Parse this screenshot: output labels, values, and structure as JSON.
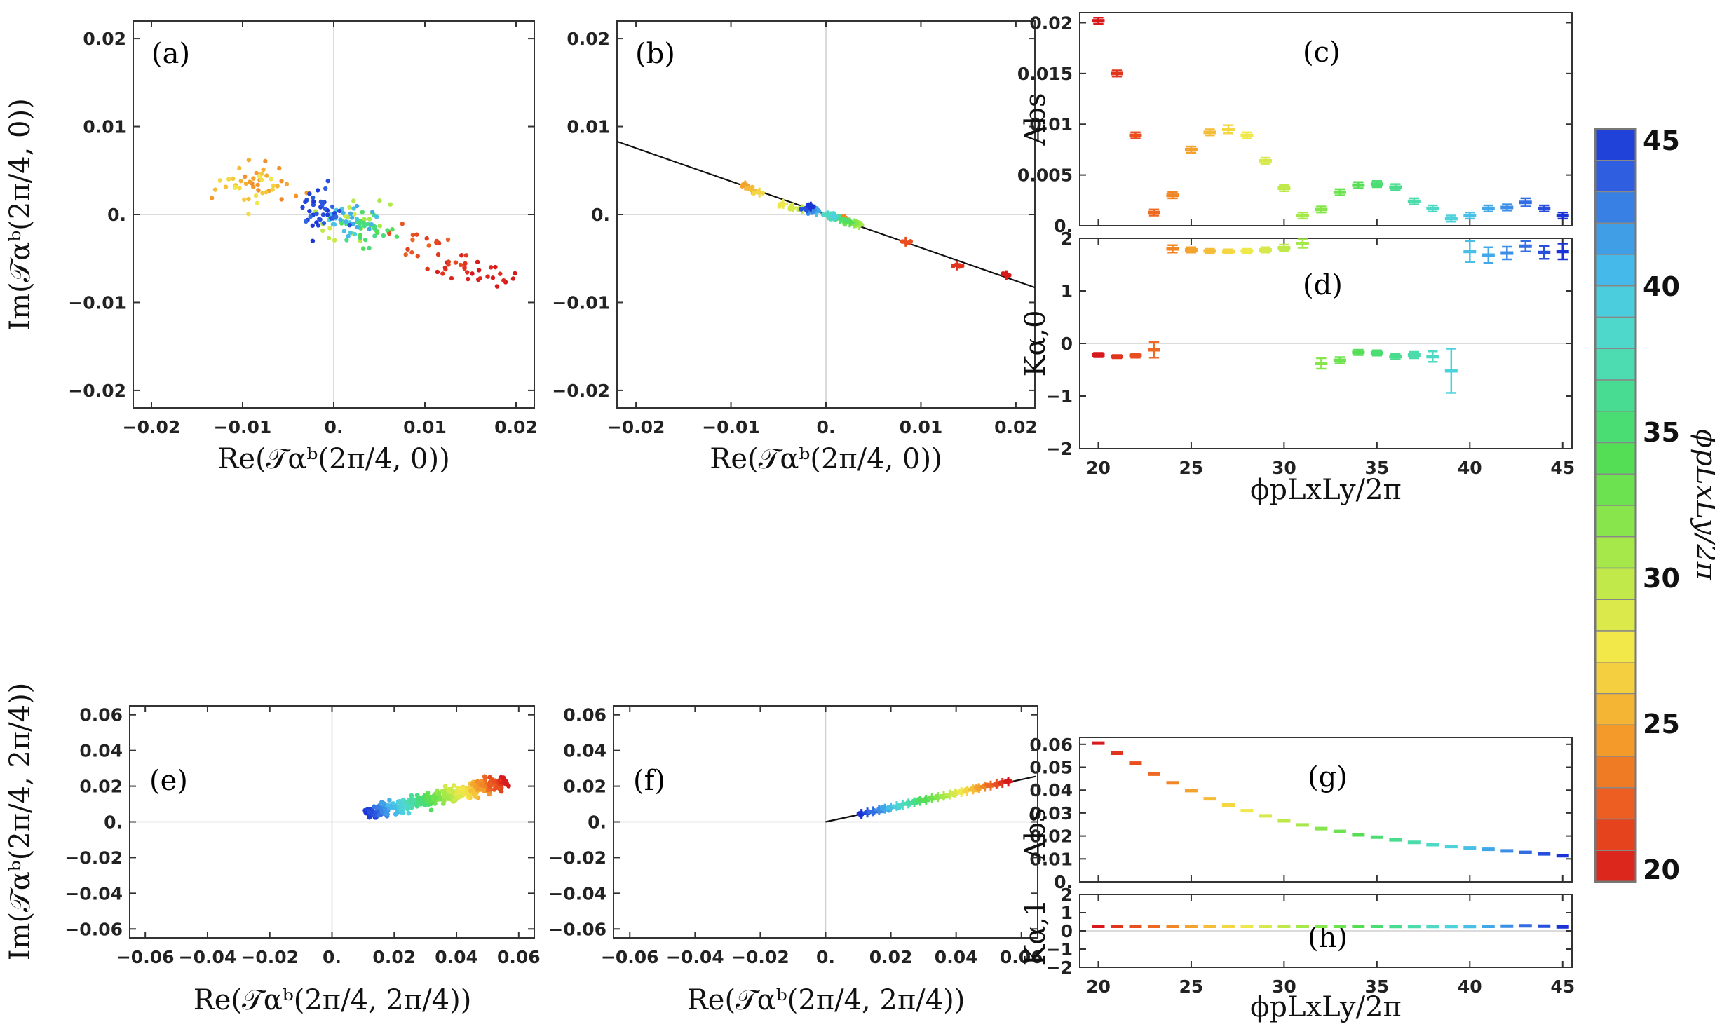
{
  "colorbar": {
    "label": "ϕpLxLy/2π",
    "ticks": [
      "20",
      "25",
      "30",
      "35",
      "40",
      "45"
    ],
    "min": 20,
    "max": 45,
    "palette": [
      "#d7191c",
      "#e5431e",
      "#ef6c22",
      "#f39a2b",
      "#f5c33a",
      "#f2e84a",
      "#cfe94a",
      "#a6e84a",
      "#79e44d",
      "#53de55",
      "#46dc83",
      "#4ddbb1",
      "#4fd7d8",
      "#45b9e9",
      "#3d91e6",
      "#2f5fe0",
      "#1a33d6"
    ]
  },
  "chart_data": [
    {
      "id": "a",
      "label": "(a)",
      "type": "scatter",
      "xlabel": "Re(𝒯αᵇ(2π/4, 0))",
      "ylabel": "Im(𝒯αᵇ(2π/4, 0))",
      "xlim": [
        -0.022,
        0.022
      ],
      "ylim": [
        -0.022,
        0.022
      ],
      "xticks": [
        "-0.02",
        "-0.01",
        "0.",
        "0.01",
        "0.02"
      ],
      "xtick_values": [
        -0.02,
        -0.01,
        0,
        0.01,
        0.02
      ],
      "yticks": [
        "-0.02",
        "-0.01",
        "0.",
        "0.01",
        "0.02"
      ],
      "ytick_values": [
        -0.02,
        -0.01,
        0,
        0.01,
        0.02
      ],
      "clusters": [
        {
          "phi": 20,
          "x": 0.018,
          "y": -0.0068,
          "sx": 0.0018,
          "sy": 0.0007,
          "n": 16
        },
        {
          "phi": 21,
          "x": 0.014,
          "y": -0.0058,
          "sx": 0.002,
          "sy": 0.0008,
          "n": 18
        },
        {
          "phi": 22,
          "x": 0.0085,
          "y": -0.0032,
          "sx": 0.0017,
          "sy": 0.0008,
          "n": 16
        },
        {
          "phi": 25,
          "x": -0.008,
          "y": 0.0035,
          "sx": 0.0018,
          "sy": 0.001,
          "n": 24
        },
        {
          "phi": 27,
          "x": -0.0095,
          "y": 0.003,
          "sx": 0.0016,
          "sy": 0.001,
          "n": 24
        },
        {
          "phi": 30,
          "x": 0.002,
          "y": -0.0008,
          "sx": 0.0018,
          "sy": 0.001,
          "n": 26
        },
        {
          "phi": 35,
          "x": 0.0035,
          "y": -0.0015,
          "sx": 0.0017,
          "sy": 0.001,
          "n": 30
        },
        {
          "phi": 40,
          "x": 0.0015,
          "y": -0.0008,
          "sx": 0.0015,
          "sy": 0.0009,
          "n": 30
        },
        {
          "phi": 44,
          "x": -0.0015,
          "y": 0.0005,
          "sx": 0.0013,
          "sy": 0.001,
          "n": 40
        }
      ]
    },
    {
      "id": "b",
      "label": "(b)",
      "type": "scatter",
      "xlabel": "Re(𝒯αᵇ(2π/4, 0))",
      "ylabel": "",
      "xlim": [
        -0.022,
        0.022
      ],
      "ylim": [
        -0.022,
        0.022
      ],
      "xticks": [
        "-0.02",
        "-0.01",
        "0.",
        "0.01",
        "0.02"
      ],
      "xtick_values": [
        -0.02,
        -0.01,
        0,
        0.01,
        0.02
      ],
      "yticks": [
        "-0.02",
        "-0.01",
        "0.",
        "0.01",
        "0.02"
      ],
      "ytick_values": [
        -0.02,
        -0.01,
        0,
        0.01,
        0.02
      ],
      "fit_line": {
        "from": [
          -0.022,
          0.0083
        ],
        "to": [
          0.022,
          -0.0083
        ]
      },
      "points": [
        {
          "phi": 20,
          "x": 0.019,
          "y": -0.0069
        },
        {
          "phi": 21,
          "x": 0.0138,
          "y": -0.0058
        },
        {
          "phi": 22,
          "x": 0.0084,
          "y": -0.0031
        },
        {
          "phi": 24,
          "x": 0.002,
          "y": -0.0005
        },
        {
          "phi": 25,
          "x": -0.0085,
          "y": 0.0033
        },
        {
          "phi": 26,
          "x": -0.0078,
          "y": 0.0028
        },
        {
          "phi": 27,
          "x": -0.007,
          "y": 0.0025
        },
        {
          "phi": 28,
          "x": -0.0045,
          "y": 0.0012
        },
        {
          "phi": 29,
          "x": -0.0035,
          "y": 0.0008
        },
        {
          "phi": 30,
          "x": -0.0025,
          "y": 0.0006
        },
        {
          "phi": 31,
          "x": 0.0035,
          "y": -0.0012
        },
        {
          "phi": 32,
          "x": 0.003,
          "y": -0.001
        },
        {
          "phi": 33,
          "x": 0.002,
          "y": -0.0008
        },
        {
          "phi": 34,
          "x": 0.0025,
          "y": -0.0009
        },
        {
          "phi": 35,
          "x": 0.0015,
          "y": -0.0005
        },
        {
          "phi": 36,
          "x": 0.001,
          "y": -0.0003
        },
        {
          "phi": 37,
          "x": 0.0005,
          "y": -0.0002
        },
        {
          "phi": 38,
          "x": 0.0002,
          "y": -0.0001
        },
        {
          "phi": 39,
          "x": 0.0008,
          "y": -0.0002
        },
        {
          "phi": 40,
          "x": -0.001,
          "y": 0.0003
        },
        {
          "phi": 41,
          "x": -0.0012,
          "y": 0.0006
        },
        {
          "phi": 42,
          "x": -0.0015,
          "y": 0.0005
        },
        {
          "phi": 43,
          "x": -0.0018,
          "y": 0.0008
        },
        {
          "phi": 44,
          "x": -0.002,
          "y": 0.0007
        },
        {
          "phi": 45,
          "x": -0.0016,
          "y": 0.0009
        }
      ]
    },
    {
      "id": "c",
      "label": "(c)",
      "type": "errorbar",
      "ylabel": "Abs",
      "xlim": [
        19,
        45.5
      ],
      "ylim": [
        0,
        0.021
      ],
      "yticks": [
        "0.",
        "0.005",
        "0.01",
        "0.015",
        "0.02"
      ],
      "ytick_values": [
        0,
        0.005,
        0.01,
        0.015,
        0.02
      ],
      "x": [
        20,
        21,
        22,
        23,
        24,
        25,
        26,
        27,
        28,
        29,
        30,
        31,
        32,
        33,
        34,
        35,
        36,
        37,
        38,
        39,
        40,
        41,
        42,
        43,
        44,
        45
      ],
      "y": [
        0.0202,
        0.015,
        0.0089,
        0.0013,
        0.003,
        0.0075,
        0.0092,
        0.0095,
        0.0089,
        0.0064,
        0.0037,
        0.001,
        0.0016,
        0.0033,
        0.004,
        0.0041,
        0.0038,
        0.0024,
        0.0017,
        0.0007,
        0.001,
        0.0017,
        0.0018,
        0.0023,
        0.0017,
        0.001
      ],
      "err": [
        0.0003,
        0.0003,
        0.0003,
        0.0003,
        0.0003,
        0.0003,
        0.0003,
        0.0004,
        0.0003,
        0.0003,
        0.0003,
        0.0003,
        0.0003,
        0.0003,
        0.0003,
        0.0003,
        0.0003,
        0.0003,
        0.0003,
        0.0003,
        0.0003,
        0.0003,
        0.0003,
        0.0004,
        0.0003,
        0.0003
      ]
    },
    {
      "id": "d",
      "label": "(d)",
      "type": "errorbar",
      "ylabel": "Kα,0",
      "xlabel": "ϕpLxLy/2π",
      "xlim": [
        19,
        45.5
      ],
      "ylim": [
        -2,
        2
      ],
      "xticks": [
        "20",
        "25",
        "30",
        "35",
        "40",
        "45"
      ],
      "xtick_values": [
        20,
        25,
        30,
        35,
        40,
        45
      ],
      "yticks": [
        "-2",
        "-1",
        "0",
        "1",
        "2"
      ],
      "ytick_values": [
        -2,
        -1,
        0,
        1,
        2
      ],
      "x": [
        20,
        21,
        22,
        23,
        24,
        25,
        26,
        27,
        28,
        29,
        30,
        31,
        32,
        33,
        34,
        35,
        36,
        37,
        38,
        39,
        40,
        41,
        42,
        43,
        44,
        45
      ],
      "y": [
        -0.22,
        -0.25,
        -0.23,
        -0.12,
        1.8,
        1.78,
        1.76,
        1.75,
        1.76,
        1.78,
        1.82,
        1.9,
        -0.38,
        -0.32,
        -0.17,
        -0.18,
        -0.25,
        -0.22,
        -0.25,
        -0.52,
        1.75,
        1.68,
        1.72,
        1.85,
        1.73,
        1.75
      ],
      "err": [
        0.04,
        0.03,
        0.04,
        0.15,
        0.07,
        0.05,
        0.04,
        0.04,
        0.04,
        0.05,
        0.06,
        0.08,
        0.1,
        0.06,
        0.05,
        0.05,
        0.05,
        0.06,
        0.1,
        0.42,
        0.2,
        0.15,
        0.12,
        0.1,
        0.12,
        0.15
      ]
    },
    {
      "id": "e",
      "label": "(e)",
      "type": "scatter",
      "xlabel": "Re(𝒯αᵇ(2π/4, 2π/4))",
      "ylabel": "Im(𝒯αᵇ(2π/4, 2π/4))",
      "xlim": [
        -0.065,
        0.065
      ],
      "ylim": [
        -0.065,
        0.065
      ],
      "xticks": [
        "-0.06",
        "-0.04",
        "-0.02",
        "0.",
        "0.02",
        "0.04",
        "0.06"
      ],
      "xtick_values": [
        -0.06,
        -0.04,
        -0.02,
        0,
        0.02,
        0.04,
        0.06
      ],
      "yticks": [
        "-0.06",
        "-0.04",
        "-0.02",
        "0.",
        "0.02",
        "0.04",
        "0.06"
      ],
      "ytick_values": [
        -0.06,
        -0.04,
        -0.02,
        0,
        0.02,
        0.04,
        0.06
      ],
      "band": {
        "from": [
          0.011,
          0.0045
        ],
        "to": [
          0.056,
          0.0225
        ],
        "perp_spread": 0.0018,
        "n": 420
      }
    },
    {
      "id": "f",
      "label": "(f)",
      "type": "scatter",
      "xlabel": "Re(𝒯αᵇ(2π/4, 2π/4))",
      "ylabel": "",
      "xlim": [
        -0.065,
        0.065
      ],
      "ylim": [
        -0.065,
        0.065
      ],
      "xticks": [
        "-0.06",
        "-0.04",
        "-0.02",
        "0.",
        "0.02",
        "0.04",
        "0.06"
      ],
      "xtick_values": [
        -0.06,
        -0.04,
        -0.02,
        0,
        0.02,
        0.04,
        0.06
      ],
      "yticks": [
        "-0.06",
        "-0.04",
        "-0.02",
        "0.",
        "0.02",
        "0.04",
        "0.06"
      ],
      "ytick_values": [
        -0.06,
        -0.04,
        -0.02,
        0,
        0.02,
        0.04,
        0.06
      ],
      "fit_line": {
        "from": [
          0,
          0
        ],
        "to": [
          0.0645,
          0.0255
        ]
      },
      "band": {
        "from": [
          0.011,
          0.0045
        ],
        "to": [
          0.056,
          0.0225
        ],
        "perp_spread": 0.0006,
        "n": 60
      }
    },
    {
      "id": "g",
      "label": "(g)",
      "type": "errorbar",
      "ylabel": "Abs",
      "xlim": [
        19,
        45.5
      ],
      "ylim": [
        0,
        0.063
      ],
      "yticks": [
        "0.",
        "0.01",
        "0.02",
        "0.03",
        "0.04",
        "0.05",
        "0.06"
      ],
      "ytick_values": [
        0,
        0.01,
        0.02,
        0.03,
        0.04,
        0.05,
        0.06
      ],
      "x": [
        20,
        21,
        22,
        23,
        24,
        25,
        26,
        27,
        28,
        29,
        30,
        31,
        32,
        33,
        34,
        35,
        36,
        37,
        38,
        39,
        40,
        41,
        42,
        43,
        44,
        45
      ],
      "y": [
        0.0605,
        0.0561,
        0.0518,
        0.047,
        0.0432,
        0.0398,
        0.0362,
        0.0335,
        0.031,
        0.0288,
        0.0266,
        0.0248,
        0.0232,
        0.022,
        0.0205,
        0.0195,
        0.0183,
        0.0172,
        0.0162,
        0.0154,
        0.0148,
        0.0142,
        0.0135,
        0.0128,
        0.0122,
        0.0114
      ],
      "err": [
        0.0003,
        0.0003,
        0.0003,
        0.0003,
        0.0003,
        0.0003,
        0.0003,
        0.0003,
        0.0003,
        0.0003,
        0.0003,
        0.0003,
        0.0003,
        0.0003,
        0.0003,
        0.0003,
        0.0003,
        0.0003,
        0.0003,
        0.0003,
        0.0003,
        0.0003,
        0.0003,
        0.0003,
        0.0003,
        0.0003
      ]
    },
    {
      "id": "h",
      "label": "(h)",
      "type": "errorbar",
      "ylabel": "Kα,1",
      "xlabel": "ϕpLxLy/2π",
      "xlim": [
        19,
        45.5
      ],
      "ylim": [
        -2,
        2
      ],
      "xticks": [
        "20",
        "25",
        "30",
        "35",
        "40",
        "45"
      ],
      "xtick_values": [
        20,
        25,
        30,
        35,
        40,
        45
      ],
      "yticks": [
        "-2",
        "-1",
        "0",
        "1",
        "2"
      ],
      "ytick_values": [
        -2,
        -1,
        0,
        1,
        2
      ],
      "x": [
        20,
        21,
        22,
        23,
        24,
        25,
        26,
        27,
        28,
        29,
        30,
        31,
        32,
        33,
        34,
        35,
        36,
        37,
        38,
        39,
        40,
        41,
        42,
        43,
        44,
        45
      ],
      "y": [
        0.25,
        0.25,
        0.25,
        0.25,
        0.25,
        0.25,
        0.25,
        0.25,
        0.25,
        0.25,
        0.25,
        0.25,
        0.25,
        0.25,
        0.25,
        0.25,
        0.24,
        0.24,
        0.24,
        0.24,
        0.24,
        0.25,
        0.26,
        0.28,
        0.26,
        0.22
      ],
      "err": [
        0.03,
        0.03,
        0.03,
        0.03,
        0.03,
        0.03,
        0.03,
        0.03,
        0.03,
        0.03,
        0.03,
        0.03,
        0.03,
        0.03,
        0.03,
        0.03,
        0.03,
        0.03,
        0.03,
        0.03,
        0.03,
        0.03,
        0.03,
        0.03,
        0.03,
        0.04
      ]
    }
  ]
}
